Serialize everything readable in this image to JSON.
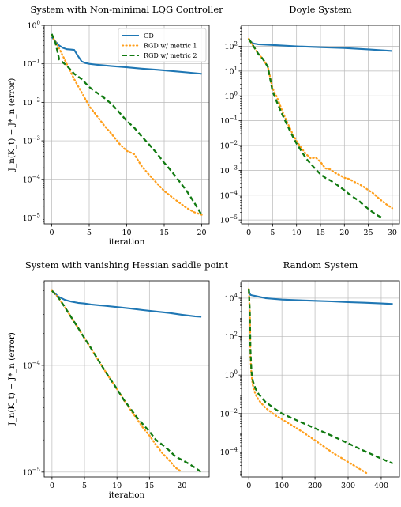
{
  "chart_data": [
    {
      "type": "line",
      "title": "System with Non-minimal LQG Controller",
      "xlabel": "iteration",
      "ylabel": "J_n(K_t) − J*_n (error)",
      "yscale": "log",
      "xlim": [
        -1,
        21
      ],
      "ylim": [
        7e-06,
        1
      ],
      "xticks": [
        0,
        5,
        10,
        15,
        20
      ],
      "yticks": [
        1e-05,
        0.0001,
        0.001,
        0.01,
        0.1,
        1
      ],
      "ytick_exponents": [
        "−5",
        "−4",
        "−3",
        "−2",
        "−1",
        "0"
      ],
      "grid": true,
      "legend": "top-right",
      "series": [
        {
          "name": "GD",
          "color": "#1f77b4",
          "style": "solid",
          "x": [
            0,
            0.5,
            1,
            1.5,
            2,
            2.5,
            3,
            3.5,
            4,
            4.5,
            5,
            6,
            8,
            10,
            12,
            14,
            16,
            18,
            20
          ],
          "y": [
            0.5,
            0.38,
            0.3,
            0.26,
            0.24,
            0.235,
            0.23,
            0.16,
            0.115,
            0.105,
            0.1,
            0.095,
            0.087,
            0.081,
            0.075,
            0.07,
            0.065,
            0.06,
            0.055
          ]
        },
        {
          "name": "RGD w/ metric 1",
          "color": "#ff9f1c",
          "style": "dotted",
          "x": [
            0,
            1,
            2,
            3,
            4,
            5,
            6,
            7,
            8,
            9,
            10,
            11,
            12,
            13,
            14,
            15,
            16,
            17,
            18,
            19,
            20
          ],
          "y": [
            0.55,
            0.25,
            0.1,
            0.04,
            0.018,
            0.008,
            0.0045,
            0.0025,
            0.0015,
            0.00085,
            0.00055,
            0.00045,
            0.00022,
            0.00013,
            8e-05,
            5e-05,
            3.5e-05,
            2.5e-05,
            1.8e-05,
            1.4e-05,
            1.2e-05
          ]
        },
        {
          "name": "RGD w/ metric 2",
          "color": "#117a11",
          "style": "dashed",
          "x": [
            0,
            0.5,
            1,
            2,
            3,
            4,
            5,
            6,
            7,
            8,
            9,
            10,
            11,
            12,
            13,
            14,
            15,
            16,
            17,
            18,
            19,
            20
          ],
          "y": [
            0.6,
            0.35,
            0.13,
            0.09,
            0.055,
            0.04,
            0.025,
            0.018,
            0.013,
            0.009,
            0.0055,
            0.0033,
            0.0022,
            0.0013,
            0.0008,
            0.00048,
            0.00027,
            0.00016,
            9e-05,
            5e-05,
            2.5e-05,
            1.2e-05
          ]
        }
      ]
    },
    {
      "type": "line",
      "title": "Doyle System",
      "xlabel": "",
      "ylabel": "",
      "yscale": "log",
      "xlim": [
        -1.5,
        31.5
      ],
      "ylim": [
        7e-06,
        700
      ],
      "xticks": [
        0,
        5,
        10,
        15,
        20,
        25,
        30
      ],
      "yticks": [
        1e-05,
        0.0001,
        0.001,
        0.01,
        0.1,
        1,
        10,
        100
      ],
      "ytick_exponents": [
        "−5",
        "−4",
        "−3",
        "−2",
        "−1",
        "0",
        "1",
        "2"
      ],
      "grid": true,
      "series": [
        {
          "name": "GD",
          "color": "#1f77b4",
          "style": "solid",
          "x": [
            0,
            0.5,
            1,
            2,
            4,
            6,
            10,
            15,
            20,
            25,
            30
          ],
          "y": [
            200,
            150,
            130,
            120,
            115,
            110,
            100,
            92,
            85,
            75,
            65
          ]
        },
        {
          "name": "RGD w/ metric 1",
          "color": "#ff9f1c",
          "style": "dotted",
          "x": [
            0,
            1,
            2,
            3,
            4,
            5,
            6,
            7,
            8,
            9,
            10,
            11,
            12,
            13,
            14,
            15,
            16,
            17,
            18,
            19,
            20,
            21,
            22,
            23,
            24,
            25,
            26,
            27,
            28,
            29,
            30
          ],
          "y": [
            200,
            100,
            50,
            30,
            15,
            2,
            0.8,
            0.25,
            0.09,
            0.035,
            0.015,
            0.008,
            0.0045,
            0.003,
            0.0033,
            0.0022,
            0.0012,
            0.0011,
            0.0008,
            0.00065,
            0.0005,
            0.00045,
            0.00035,
            0.00028,
            0.00022,
            0.00016,
            0.00012,
            8e-05,
            5.5e-05,
            4e-05,
            3e-05
          ]
        },
        {
          "name": "RGD w/ metric 2",
          "color": "#117a11",
          "style": "dashed",
          "x": [
            0,
            1,
            2,
            3,
            4,
            5,
            6,
            7,
            8,
            9,
            10,
            11,
            12,
            13,
            14,
            15,
            16,
            17,
            18,
            19,
            20,
            21,
            22,
            23,
            24,
            25,
            26,
            27,
            28
          ],
          "y": [
            200,
            100,
            50,
            30,
            15,
            1.5,
            0.5,
            0.18,
            0.07,
            0.028,
            0.012,
            0.006,
            0.003,
            0.0018,
            0.0011,
            0.0007,
            0.0005,
            0.0004,
            0.0003,
            0.00022,
            0.00016,
            0.00011,
            8e-05,
            6e-05,
            4e-05,
            2.8e-05,
            2e-05,
            1.5e-05,
            1.2e-05
          ]
        }
      ]
    },
    {
      "type": "line",
      "title": "System with vanishing Hessian saddle point",
      "xlabel": "iteration",
      "ylabel": "J_n(K_t) − J*_n (error)",
      "yscale": "log",
      "xlim": [
        -1.2,
        24.2
      ],
      "ylim": [
        9e-06,
        0.00062
      ],
      "xticks": [
        0,
        5,
        10,
        15,
        20
      ],
      "yticks": [
        1e-05,
        0.0001
      ],
      "ytick_exponents": [
        "−5",
        "−4"
      ],
      "grid": true,
      "series": [
        {
          "name": "GD",
          "color": "#1f77b4",
          "style": "solid",
          "x": [
            0,
            0.5,
            1,
            1.5,
            2,
            3,
            4,
            5,
            6,
            8,
            10,
            12,
            14,
            16,
            18,
            20,
            22,
            23
          ],
          "y": [
            0.0005,
            0.00047,
            0.00044,
            0.000425,
            0.00041,
            0.000395,
            0.000385,
            0.00038,
            0.000372,
            0.000362,
            0.000352,
            0.000342,
            0.00033,
            0.00032,
            0.00031,
            0.000298,
            0.000288,
            0.000285
          ]
        },
        {
          "name": "RGD w/ metric 1",
          "color": "#ff9f1c",
          "style": "dotted",
          "x": [
            0,
            1,
            2,
            3,
            4,
            5,
            6,
            7,
            8,
            9,
            10,
            11,
            12,
            13,
            14,
            15,
            16,
            17,
            18,
            19,
            20
          ],
          "y": [
            0.0005,
            0.00043,
            0.00035,
            0.00028,
            0.000225,
            0.00018,
            0.000145,
            0.000115,
            9.2e-05,
            7.4e-05,
            6e-05,
            4.8e-05,
            3.9e-05,
            3.2e-05,
            2.6e-05,
            2.2e-05,
            1.8e-05,
            1.5e-05,
            1.3e-05,
            1.1e-05,
            1e-05
          ]
        },
        {
          "name": "RGD w/ metric 2",
          "color": "#117a11",
          "style": "dashed",
          "x": [
            0,
            1,
            2,
            3,
            4,
            5,
            6,
            7,
            8,
            9,
            10,
            11,
            12,
            13,
            14,
            15,
            16,
            17,
            18,
            19,
            20,
            21,
            22,
            23
          ],
          "y": [
            0.0005,
            0.00043,
            0.00035,
            0.00028,
            0.000225,
            0.00018,
            0.000145,
            0.000115,
            9.2e-05,
            7.4e-05,
            6e-05,
            4.8e-05,
            4e-05,
            3.3e-05,
            2.8e-05,
            2.4e-05,
            2e-05,
            1.8e-05,
            1.6e-05,
            1.4e-05,
            1.3e-05,
            1.2e-05,
            1.1e-05,
            1e-05
          ]
        }
      ]
    },
    {
      "type": "line",
      "title": "Random System",
      "xlabel": "",
      "ylabel": "",
      "yscale": "log",
      "xlim": [
        -22,
        455
      ],
      "ylim": [
        5e-06,
        80000
      ],
      "xticks": [
        0,
        100,
        200,
        300,
        400
      ],
      "yticks": [
        0.0001,
        0.01,
        1,
        100,
        10000
      ],
      "ytick_exponents": [
        "−4",
        "−2",
        "0",
        "2",
        "4"
      ],
      "grid": true,
      "series": [
        {
          "name": "GD",
          "color": "#1f77b4",
          "style": "solid",
          "x": [
            0,
            2,
            5,
            10,
            20,
            50,
            100,
            150,
            200,
            250,
            300,
            350,
            400,
            435
          ],
          "y": [
            30000,
            18000,
            15000,
            14000,
            13000,
            10000,
            8500,
            7800,
            7300,
            6800,
            6200,
            5800,
            5300,
            5000
          ]
        },
        {
          "name": "RGD w/ metric 1",
          "color": "#ff9f1c",
          "style": "dotted",
          "x": [
            0,
            3,
            5,
            8,
            12,
            20,
            30,
            50,
            80,
            100,
            150,
            200,
            250,
            300,
            355
          ],
          "y": [
            30000,
            2000,
            10,
            1,
            0.3,
            0.1,
            0.05,
            0.02,
            0.008,
            0.005,
            0.0015,
            0.0004,
            0.0001,
            3e-05,
            8e-06
          ]
        },
        {
          "name": "RGD w/ metric 2",
          "color": "#117a11",
          "style": "dashed",
          "x": [
            0,
            3,
            5,
            8,
            12,
            20,
            30,
            50,
            80,
            100,
            150,
            200,
            250,
            300,
            350,
            400,
            435
          ],
          "y": [
            30000,
            2000,
            20,
            1.5,
            0.5,
            0.2,
            0.1,
            0.04,
            0.017,
            0.01,
            0.004,
            0.0017,
            0.0007,
            0.00028,
            0.00011,
            4.5e-05,
            2.5e-05
          ]
        }
      ]
    }
  ]
}
